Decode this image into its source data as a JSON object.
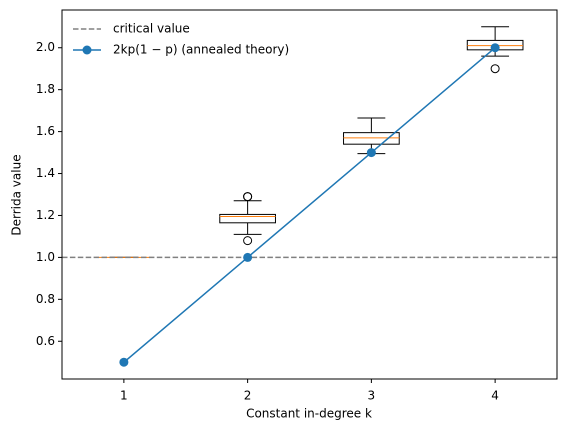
{
  "chart_data": {
    "type": "box",
    "xlabel": "Constant in-degree k",
    "ylabel": "Derrida value",
    "xlim": [
      0.5,
      4.5
    ],
    "xticks": [
      1,
      2,
      3,
      4
    ],
    "ylim": [
      0.42,
      2.18
    ],
    "yticks": [
      0.6,
      0.8,
      {
        "value": 1.0,
        "label": "1.0"
      },
      1.2,
      1.4,
      1.6,
      1.8,
      {
        "value": 2.0,
        "label": "2.0"
      }
    ],
    "median_color": "#ff7f0e",
    "boxes": [
      {
        "x": 1,
        "whislo": 1.0,
        "q1": 1.0,
        "med": 1.0,
        "q3": 1.0,
        "whishi": 1.0
      },
      {
        "x": 2,
        "whislo": 1.11,
        "q1": 1.165,
        "med": 1.195,
        "q3": 1.205,
        "whishi": 1.27,
        "fliers": [
          1.29,
          1.29,
          1.08
        ]
      },
      {
        "x": 3,
        "whislo": 1.495,
        "q1": 1.54,
        "med": 1.57,
        "q3": 1.595,
        "whishi": 1.665
      },
      {
        "x": 4,
        "whislo": 1.96,
        "q1": 1.99,
        "med": 2.01,
        "q3": 2.035,
        "whishi": 2.1,
        "fliers": [
          1.9
        ]
      }
    ],
    "hlines": [
      {
        "name": "critical value",
        "value": 1.0,
        "color": "#808080",
        "style": "dashed"
      }
    ],
    "series": [
      {
        "name": "2kp(1 − p) (annealed theory)",
        "color": "#1f77b4",
        "x": [
          1,
          2,
          3,
          4
        ],
        "values": [
          0.5,
          1.0,
          1.5,
          2.0
        ]
      }
    ],
    "legend": "upper left"
  }
}
